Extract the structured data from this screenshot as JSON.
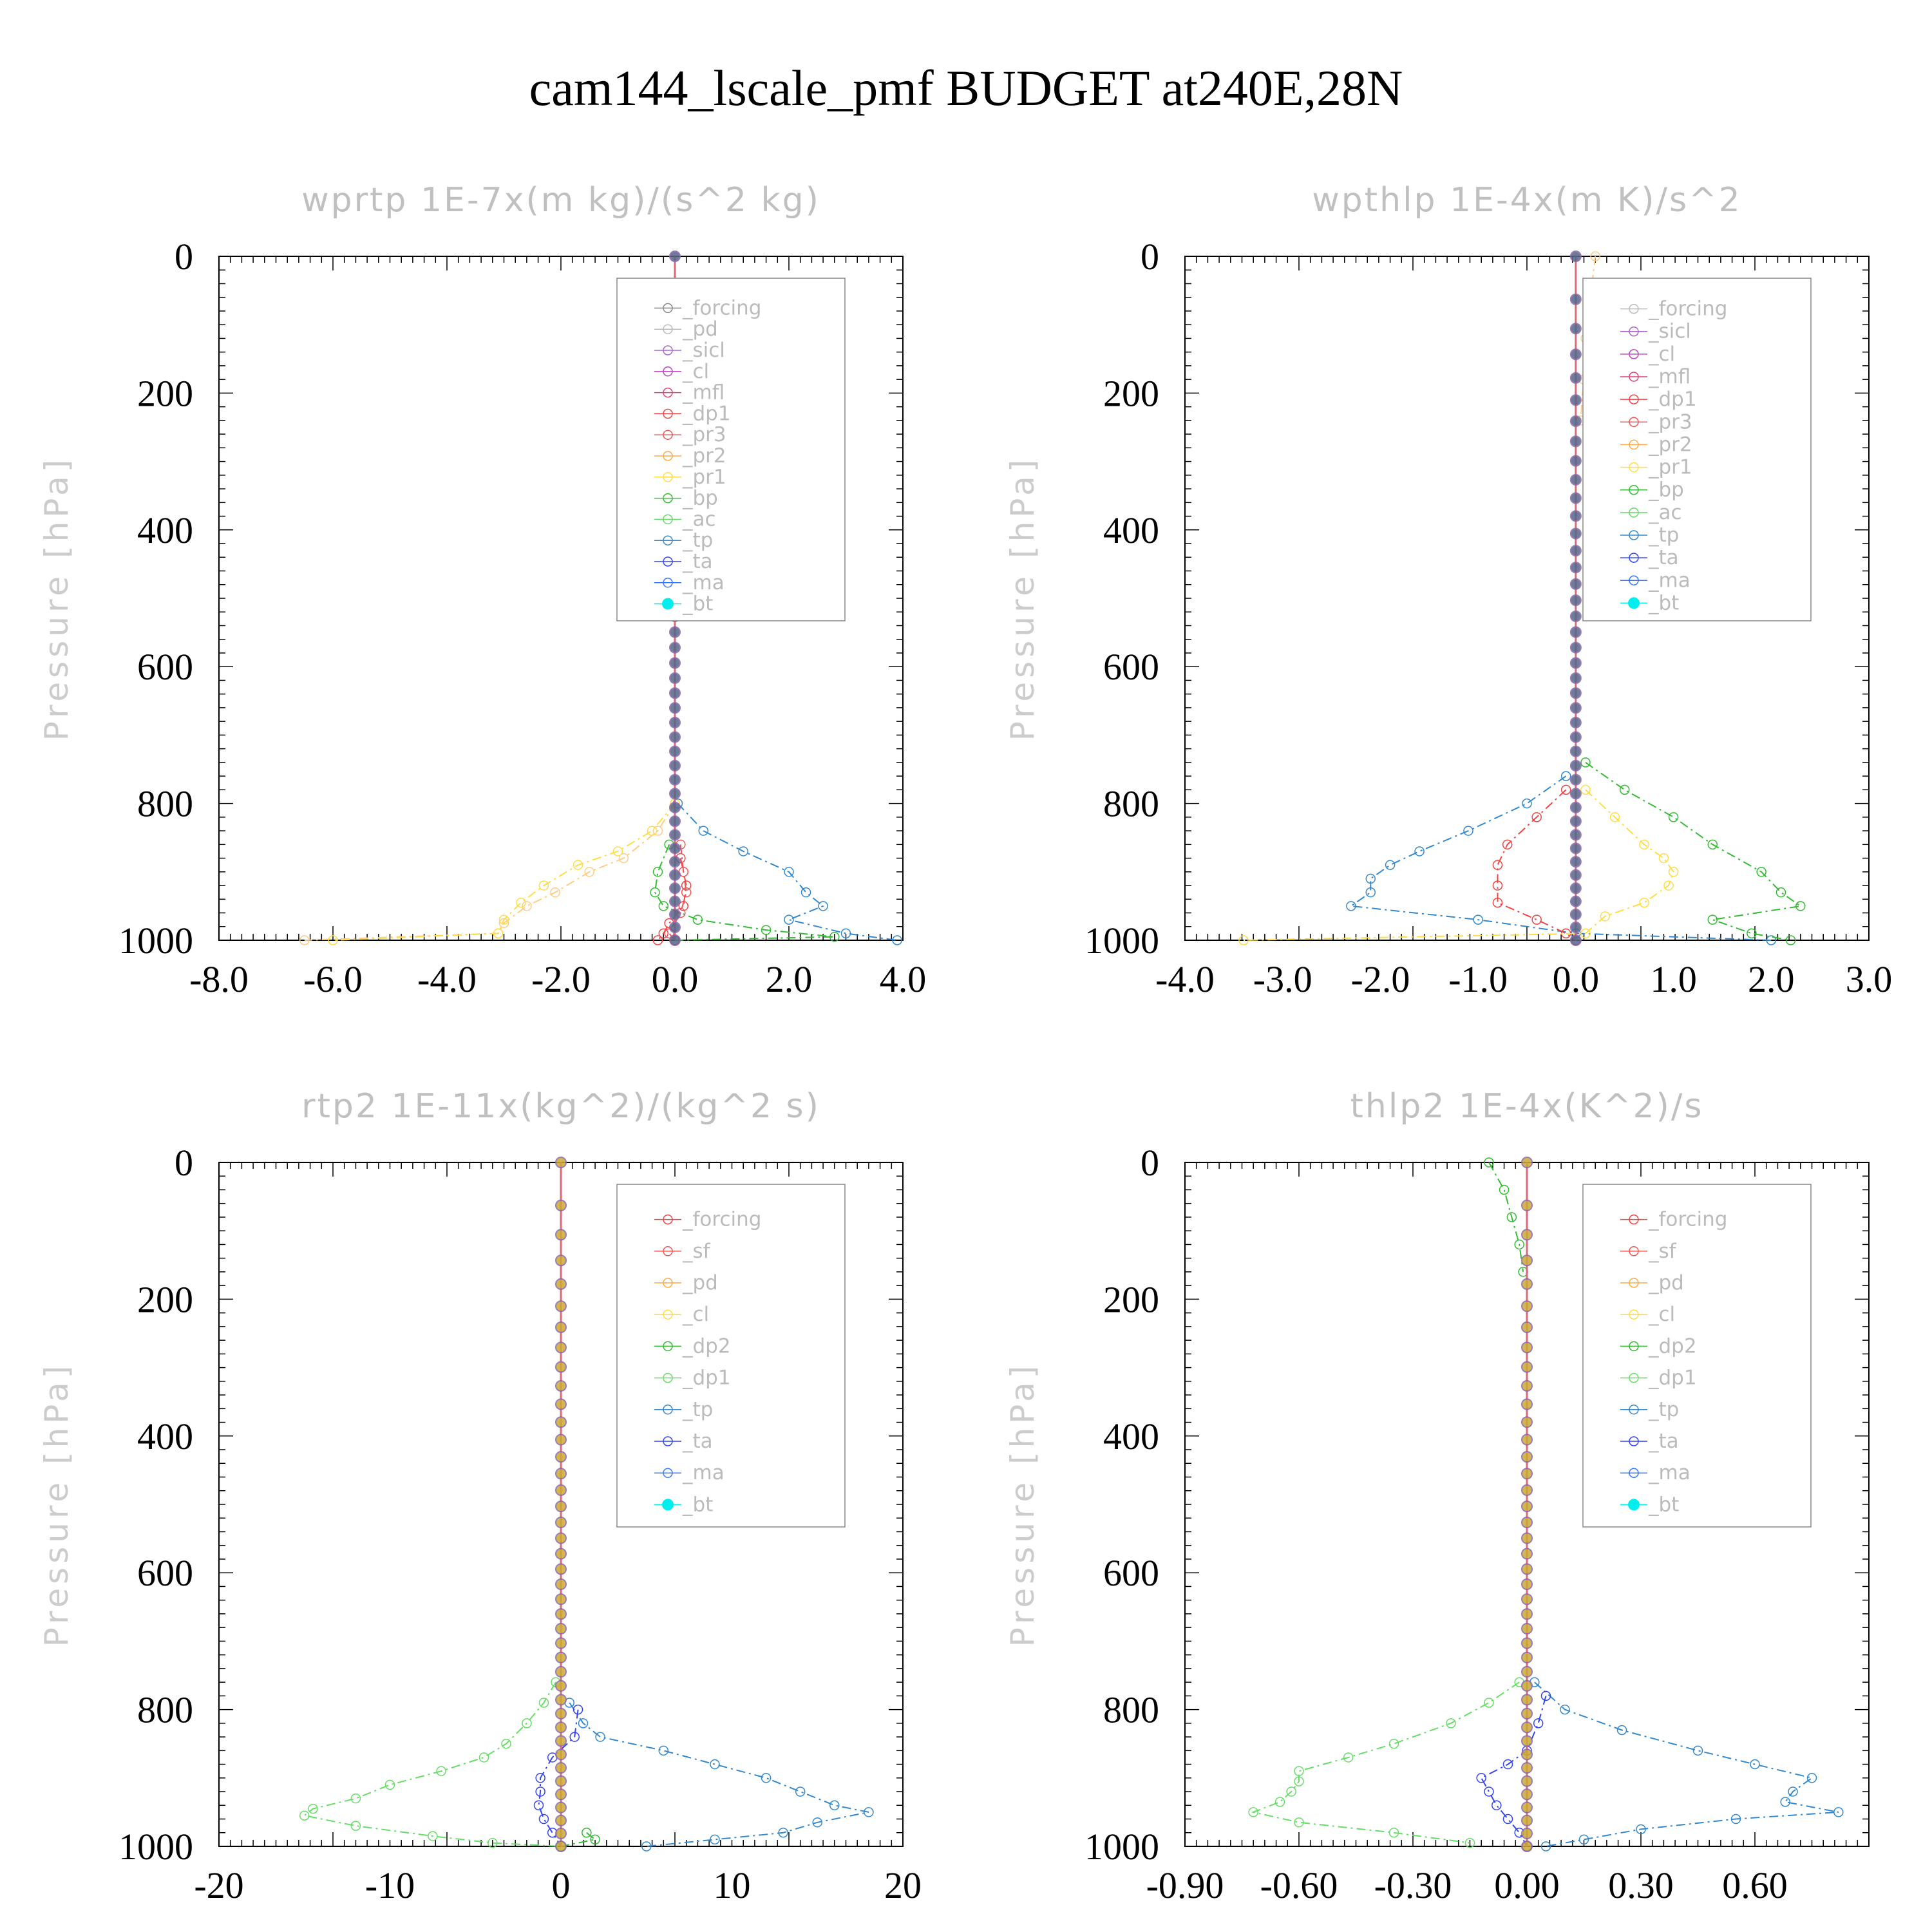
{
  "main_title": "cam144_lscale_pmf  BUDGET at240E,28N",
  "chart_data": [
    {
      "type": "line",
      "title": "wprtp   1E-7x(m kg)/(s^2 kg)",
      "ylabel": "Pressure [hPa]",
      "ylim": [
        1000,
        0
      ],
      "xlim": [
        -8,
        4
      ],
      "xticks": [
        "-8.0",
        "-6.0",
        "-4.0",
        "-2.0",
        "0.0",
        "2.0",
        "4.0"
      ],
      "xtick_values": [
        -8,
        -6,
        -4,
        -2,
        0,
        2,
        4
      ],
      "yticks": [
        "0",
        "200",
        "400",
        "600",
        "800",
        "1000"
      ],
      "ytick_values": [
        0,
        200,
        400,
        600,
        800,
        1000
      ],
      "legend_position": "top-right",
      "legend": [
        "_forcing",
        "_pd",
        "_sicl",
        "_cl",
        "_mfl",
        "_dp1",
        "_pr3",
        "_pr2",
        "_pr1",
        "_bp",
        "_ac",
        "_tp",
        "_ta",
        "_ma",
        "_bt"
      ],
      "series": [
        {
          "name": "_pr2",
          "color": "#ffcc88",
          "y": [
            800,
            840,
            880,
            900,
            930,
            950,
            975,
            990,
            1000
          ],
          "x": [
            0,
            -0.3,
            -0.9,
            -1.5,
            -2.1,
            -2.6,
            -3.0,
            -3.1,
            -6.5
          ]
        },
        {
          "name": "_pr1",
          "color": "#ffdd44",
          "y": [
            800,
            840,
            870,
            890,
            920,
            945,
            970,
            990,
            1000
          ],
          "x": [
            0,
            -0.4,
            -1.0,
            -1.7,
            -2.3,
            -2.7,
            -3.0,
            -3.1,
            -6.0
          ]
        },
        {
          "name": "_bp",
          "color": "#33bb33",
          "y": [
            860,
            900,
            930,
            950,
            970,
            985,
            995,
            1000
          ],
          "x": [
            -0.1,
            -0.3,
            -0.35,
            -0.2,
            0.4,
            1.6,
            2.8,
            0
          ]
        },
        {
          "name": "_tp",
          "color": "#3388cc",
          "y": [
            800,
            840,
            870,
            900,
            930,
            950,
            970,
            990,
            1000
          ],
          "x": [
            0.05,
            0.5,
            1.2,
            2.0,
            2.3,
            2.6,
            2.0,
            3.0,
            3.9
          ]
        },
        {
          "name": "_dp1",
          "color": "#ee4444",
          "y": [
            880,
            920,
            950,
            975,
            990,
            1000
          ],
          "x": [
            0.1,
            0.2,
            0.15,
            -0.1,
            -0.2,
            -0.3
          ]
        },
        {
          "name": "_pr3",
          "color": "#ee5555",
          "y": [
            860,
            900,
            930,
            960,
            990,
            1000
          ],
          "x": [
            0.1,
            0.15,
            0.2,
            0.1,
            -0.1,
            0
          ]
        }
      ]
    },
    {
      "type": "line",
      "title": "wpthlp   1E-4x(m K)/s^2",
      "ylabel": "Pressure [hPa]",
      "ylim": [
        1000,
        0
      ],
      "xlim": [
        -4,
        3
      ],
      "xticks": [
        "-4.0",
        "-3.0",
        "-2.0",
        "-1.0",
        "0.0",
        "1.0",
        "2.0",
        "3.0"
      ],
      "xtick_values": [
        -4,
        -3,
        -2,
        -1,
        0,
        1,
        2,
        3
      ],
      "yticks": [
        "0",
        "200",
        "400",
        "600",
        "800",
        "1000"
      ],
      "ytick_values": [
        0,
        200,
        400,
        600,
        800,
        1000
      ],
      "legend_position": "top-right",
      "legend": [
        "_forcing",
        "_sicl",
        "_cl",
        "_mfl",
        "_dp1",
        "_pr3",
        "_pr2",
        "_pr1",
        "_bp",
        "_ac",
        "_tp",
        "_ta",
        "_ma",
        "_bt"
      ],
      "series": [
        {
          "name": "_tp",
          "color": "#3388cc",
          "y": [
            760,
            800,
            840,
            870,
            890,
            910,
            930,
            950,
            970,
            990,
            1000
          ],
          "x": [
            -0.1,
            -0.5,
            -1.1,
            -1.6,
            -1.9,
            -2.1,
            -2.1,
            -2.3,
            -1.0,
            0,
            2.0
          ]
        },
        {
          "name": "_dp1",
          "color": "#ee4444",
          "y": [
            780,
            820,
            860,
            890,
            920,
            945,
            970,
            990,
            1000
          ],
          "x": [
            -0.1,
            -0.4,
            -0.7,
            -0.8,
            -0.8,
            -0.8,
            -0.4,
            -0.1,
            0
          ]
        },
        {
          "name": "_pr1",
          "color": "#ffdd44",
          "y": [
            780,
            820,
            860,
            880,
            900,
            920,
            945,
            965,
            990,
            1000
          ],
          "x": [
            0.1,
            0.4,
            0.7,
            0.9,
            1.0,
            0.95,
            0.7,
            0.3,
            0.1,
            -3.4
          ]
        },
        {
          "name": "_bp",
          "color": "#33bb33",
          "y": [
            740,
            780,
            820,
            860,
            900,
            930,
            950,
            970,
            990,
            1000
          ],
          "x": [
            0.1,
            0.5,
            1.0,
            1.4,
            1.9,
            2.1,
            2.3,
            1.4,
            1.8,
            2.2
          ]
        },
        {
          "name": "_pr2",
          "color": "#ffcc88",
          "y": [
            0,
            60,
            120,
            180,
            240
          ],
          "x": [
            0.2,
            0.15,
            0.1,
            0.08,
            0.05
          ]
        }
      ]
    },
    {
      "type": "line",
      "title": "rtp2   1E-11x(kg^2)/(kg^2 s)",
      "ylabel": "Pressure [hPa]",
      "ylim": [
        1000,
        0
      ],
      "xlim": [
        -20,
        20
      ],
      "xticks": [
        "-20",
        "-10",
        "0",
        "10",
        "20"
      ],
      "xtick_values": [
        -20,
        -10,
        0,
        10,
        20
      ],
      "yticks": [
        "0",
        "200",
        "400",
        "600",
        "800",
        "1000"
      ],
      "ytick_values": [
        0,
        200,
        400,
        600,
        800,
        1000
      ],
      "legend_position": "top-right",
      "legend": [
        "_forcing",
        "_sf",
        "_pd",
        "_cl",
        "_dp2",
        "_dp1",
        "_tp",
        "_ta",
        "_ma",
        "_bt"
      ],
      "series": [
        {
          "name": "_dp1",
          "color": "#66dd66",
          "y": [
            760,
            790,
            820,
            850,
            870,
            890,
            910,
            930,
            945,
            955,
            970,
            985,
            995,
            1000
          ],
          "x": [
            -0.3,
            -1.0,
            -2.0,
            -3.2,
            -4.5,
            -7.0,
            -10.0,
            -12.0,
            -14.5,
            -15.0,
            -12.0,
            -7.5,
            -4.0,
            0
          ]
        },
        {
          "name": "_tp",
          "color": "#3388cc",
          "y": [
            790,
            820,
            840,
            860,
            880,
            900,
            920,
            940,
            950,
            965,
            980,
            990,
            1000
          ],
          "x": [
            0.5,
            1.3,
            2.3,
            6.0,
            9.0,
            12.0,
            14.0,
            16.0,
            18.0,
            15.0,
            13.0,
            9.0,
            5.0
          ]
        },
        {
          "name": "_ta",
          "color": "#3344ee",
          "y": [
            800,
            840,
            870,
            900,
            920,
            940,
            960,
            980,
            1000
          ],
          "x": [
            1.0,
            0.8,
            -0.5,
            -1.2,
            -1.2,
            -1.3,
            -1.0,
            -0.5,
            0
          ]
        },
        {
          "name": "_dp2",
          "color": "#33bb33",
          "y": [
            980,
            990,
            1000
          ],
          "x": [
            1.5,
            2.0,
            0
          ]
        }
      ]
    },
    {
      "type": "line",
      "title": "thlp2   1E-4x(K^2)/s",
      "ylabel": "Pressure [hPa]",
      "ylim": [
        1000,
        0
      ],
      "xlim": [
        -0.9,
        0.9
      ],
      "xticks": [
        "-0.90",
        "-0.60",
        "-0.30",
        "0.00",
        "0.30",
        "0.60"
      ],
      "xtick_values": [
        -0.9,
        -0.6,
        -0.3,
        0,
        0.3,
        0.6
      ],
      "yticks": [
        "0",
        "200",
        "400",
        "600",
        "800",
        "1000"
      ],
      "ytick_values": [
        0,
        200,
        400,
        600,
        800,
        1000
      ],
      "legend_position": "top-right",
      "legend": [
        "_forcing",
        "_sf",
        "_pd",
        "_cl",
        "_dp2",
        "_dp1",
        "_tp",
        "_ta",
        "_ma",
        "_bt"
      ],
      "series": [
        {
          "name": "_dp1",
          "color": "#66dd66",
          "y": [
            760,
            790,
            820,
            850,
            870,
            890,
            905,
            920,
            935,
            950,
            965,
            980,
            995
          ],
          "x": [
            -0.02,
            -0.1,
            -0.2,
            -0.35,
            -0.47,
            -0.6,
            -0.6,
            -0.62,
            -0.65,
            -0.72,
            -0.6,
            -0.35,
            -0.15
          ]
        },
        {
          "name": "_tp",
          "color": "#3388cc",
          "y": [
            760,
            800,
            830,
            860,
            880,
            900,
            920,
            935,
            950,
            960,
            975,
            990,
            1000
          ],
          "x": [
            0.02,
            0.1,
            0.25,
            0.45,
            0.6,
            0.75,
            0.7,
            0.68,
            0.82,
            0.55,
            0.3,
            0.15,
            0.05
          ]
        },
        {
          "name": "_ta",
          "color": "#3344ee",
          "y": [
            780,
            820,
            860,
            880,
            900,
            920,
            940,
            960,
            980,
            1000
          ],
          "x": [
            0.05,
            0.03,
            0.0,
            -0.05,
            -0.12,
            -0.1,
            -0.08,
            -0.05,
            -0.02,
            0
          ]
        },
        {
          "name": "_dp2",
          "color": "#33bb33",
          "y": [
            0,
            40,
            80,
            120,
            160
          ],
          "x": [
            -0.1,
            -0.06,
            -0.04,
            -0.02,
            -0.01
          ]
        }
      ]
    }
  ]
}
